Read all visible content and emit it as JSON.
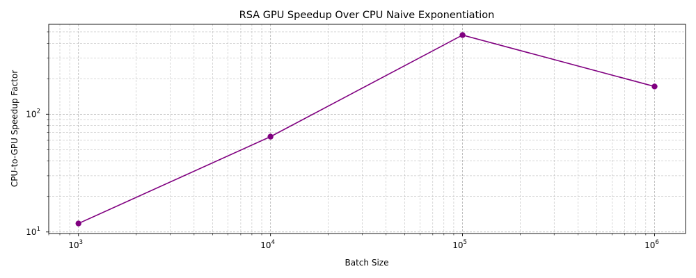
{
  "chart_data": {
    "type": "line",
    "title": "RSA GPU Speedup Over CPU Naive Exponentiation",
    "xlabel": "Batch Size",
    "ylabel": "CPU-to-GPU Speedup Factor",
    "x_scale": "log",
    "y_scale": "log",
    "xlim": [
      700,
      1450000
    ],
    "ylim": [
      9.7,
      580
    ],
    "x_ticks": [
      {
        "value": 1000,
        "base": "10",
        "exp": "3"
      },
      {
        "value": 10000,
        "base": "10",
        "exp": "4"
      },
      {
        "value": 100000,
        "base": "10",
        "exp": "5"
      },
      {
        "value": 1000000,
        "base": "10",
        "exp": "6"
      }
    ],
    "y_ticks": [
      {
        "value": 10,
        "base": "10",
        "exp": "1"
      },
      {
        "value": 100,
        "base": "10",
        "exp": "2"
      }
    ],
    "grid": true,
    "series": [
      {
        "color": "#800080",
        "marker": "circle",
        "x": [
          1000,
          10000,
          100000,
          1000000
        ],
        "y": [
          11.8,
          64.5,
          470,
          172
        ]
      }
    ]
  }
}
